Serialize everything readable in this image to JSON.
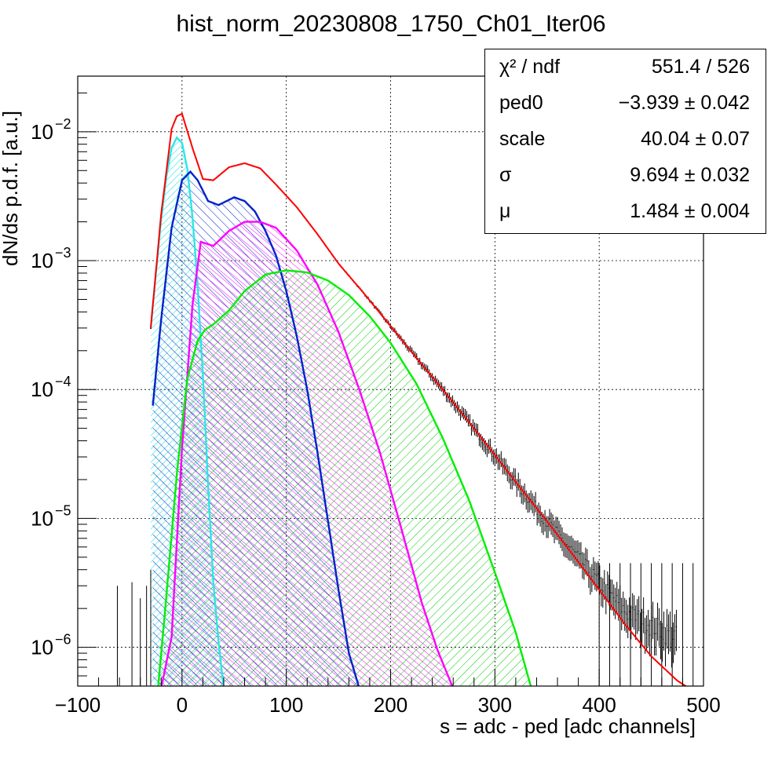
{
  "chart_data": {
    "type": "line",
    "title": "hist_norm_20230808_1750_Ch01_Iter06",
    "xlabel": "s = adc - ped [adc channels]",
    "ylabel": "dN/ds p.d.f. [a.u.]",
    "xlim": [
      -100,
      500
    ],
    "ylim": [
      5e-07,
      0.027
    ],
    "yscale": "log",
    "grid": true,
    "x_ticks": [
      "−100",
      "0",
      "100",
      "200",
      "300",
      "400",
      "500"
    ],
    "x_tick_values": [
      -100,
      0,
      100,
      200,
      300,
      400,
      500
    ],
    "y_ticks": [
      {
        "value": 1e-06,
        "base": "10",
        "exp": "−6"
      },
      {
        "value": 1e-05,
        "base": "10",
        "exp": "−5"
      },
      {
        "value": 0.0001,
        "base": "10",
        "exp": "−4"
      },
      {
        "value": 0.001,
        "base": "10",
        "exp": "−3"
      },
      {
        "value": 0.01,
        "base": "10",
        "exp": "−2"
      }
    ],
    "stats": {
      "legend_position": "top-right",
      "rows": [
        {
          "key": "χ² / ndf",
          "value": "551.4 / 526"
        },
        {
          "key": "ped0",
          "value": "−3.939 ± 0.042"
        },
        {
          "key": "scale",
          "value": "40.04 ± 0.07"
        },
        {
          "key": "σ",
          "value": "9.694 ± 0.032"
        },
        {
          "key": "μ",
          "value": "1.484 ± 0.004"
        }
      ]
    },
    "series": [
      {
        "role": "data",
        "color": "#000000",
        "x": [
          -30,
          -20,
          -10,
          -5,
          0,
          10,
          20,
          30,
          45,
          60,
          75,
          90,
          110,
          130,
          150,
          175,
          200,
          225,
          250,
          275,
          300,
          325,
          350,
          375,
          400,
          425,
          450,
          475
        ],
        "values": [
          0.0003,
          0.0023,
          0.0105,
          0.0132,
          0.0138,
          0.0075,
          0.0043,
          0.0042,
          0.0053,
          0.0057,
          0.0052,
          0.0039,
          0.0026,
          0.0016,
          0.00095,
          0.00055,
          0.00031,
          0.000175,
          0.0001,
          5.6e-05,
          3.1e-05,
          1.7e-05,
          9.5e-06,
          5.5e-06,
          3.2e-06,
          1.9e-06,
          1.5e-06,
          1.2e-06
        ]
      },
      {
        "role": "fit",
        "color": "#ff0000",
        "x": [
          -30,
          -20,
          -10,
          -5,
          0,
          10,
          20,
          30,
          45,
          60,
          75,
          90,
          110,
          130,
          150,
          175,
          200,
          225,
          250,
          275,
          300,
          325,
          350,
          375,
          400,
          425,
          450,
          475,
          492
        ],
        "values": [
          0.0003,
          0.0023,
          0.0105,
          0.0132,
          0.0138,
          0.0075,
          0.0043,
          0.0042,
          0.0053,
          0.0057,
          0.0052,
          0.0039,
          0.0026,
          0.0016,
          0.00095,
          0.00055,
          0.00031,
          0.000175,
          0.0001,
          5.6e-05,
          3.1e-05,
          1.7e-05,
          9.5e-06,
          5.2e-06,
          2.8e-06,
          1.5e-06,
          8.5e-07,
          5.5e-07,
          4.5e-07
        ]
      },
      {
        "role": "component",
        "color": "#2ee6e6",
        "x": [
          -30,
          -25,
          -20,
          -15,
          -10,
          -5,
          0,
          5,
          10,
          15,
          20,
          25,
          30,
          35,
          40
        ],
        "values": [
          0.0003,
          0.0008,
          0.0021,
          0.0045,
          0.0075,
          0.009,
          0.0082,
          0.0052,
          0.0022,
          0.00064,
          0.00013,
          1.8e-05,
          3.2e-06,
          1.1e-06,
          4.8e-07
        ]
      },
      {
        "role": "component",
        "color": "#0022cc",
        "x": [
          -28,
          -20,
          -10,
          0,
          8,
          15,
          25,
          35,
          50,
          60,
          70,
          80,
          90,
          100,
          110,
          120,
          130,
          140,
          150,
          160,
          170
        ],
        "values": [
          7.5e-05,
          0.00035,
          0.0018,
          0.0042,
          0.0049,
          0.0042,
          0.0029,
          0.0027,
          0.0031,
          0.0029,
          0.0024,
          0.0017,
          0.0011,
          0.00058,
          0.00026,
          0.0001,
          3.2e-05,
          9.5e-06,
          2.8e-06,
          9e-07,
          4.8e-07
        ]
      },
      {
        "role": "component",
        "color": "#ff00ff",
        "x": [
          -20,
          -10,
          0,
          10,
          18,
          30,
          45,
          60,
          75,
          90,
          110,
          130,
          150,
          170,
          190,
          210,
          230,
          245,
          260
        ],
        "values": [
          4.8e-07,
          1.2e-06,
          3.5e-05,
          0.00045,
          0.0014,
          0.0013,
          0.0017,
          0.002,
          0.002,
          0.0018,
          0.0012,
          0.00065,
          0.00028,
          0.0001,
          3.2e-05,
          8.5e-06,
          2.2e-06,
          9.5e-07,
          4.8e-07
        ]
      },
      {
        "role": "component",
        "color": "#00ee00",
        "x": [
          -23,
          -15,
          -5,
          5,
          15,
          22,
          30,
          45,
          60,
          80,
          100,
          120,
          140,
          160,
          180,
          200,
          225,
          250,
          275,
          300,
          320,
          335
        ],
        "values": [
          4.8e-07,
          2.5e-06,
          2.2e-05,
          0.00012,
          0.00024,
          0.00029,
          0.00032,
          0.00041,
          0.00058,
          0.00078,
          0.00084,
          0.00081,
          0.0007,
          0.00054,
          0.00037,
          0.00023,
          0.00011,
          4.2e-05,
          1.4e-05,
          3.8e-06,
          1.3e-06,
          4.8e-07
        ]
      }
    ]
  }
}
